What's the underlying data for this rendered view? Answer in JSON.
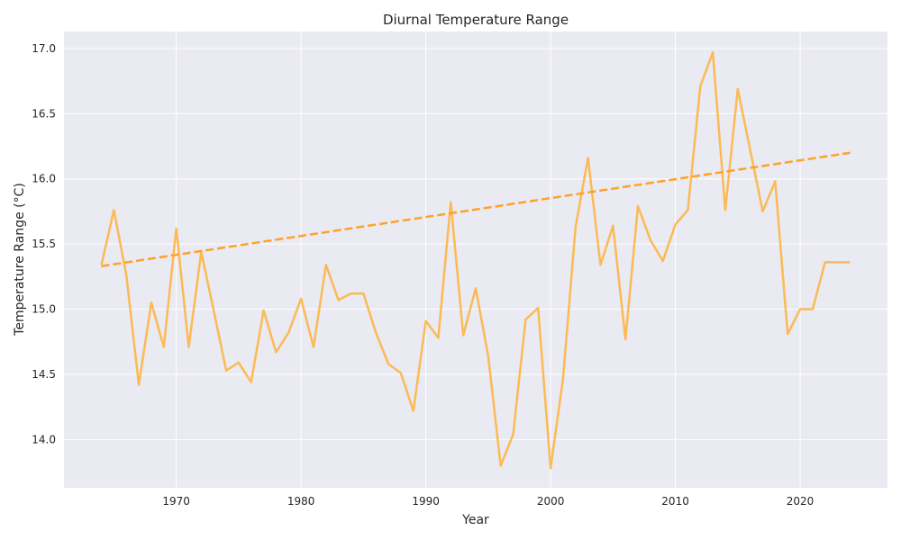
{
  "chart_data": {
    "type": "line",
    "title": "Diurnal Temperature Range",
    "xlabel": "Year",
    "ylabel": "Temperature Range (°C)",
    "xlim": [
      1961,
      2027
    ],
    "ylim": [
      13.63,
      17.13
    ],
    "xticks": [
      1970,
      1980,
      1990,
      2000,
      2010,
      2020
    ],
    "yticks": [
      14.0,
      14.5,
      15.0,
      15.5,
      16.0,
      16.5,
      17.0
    ],
    "grid": true,
    "colors": {
      "series": "#FFB13A",
      "trend": "#FF9E1F",
      "background": "#EAEAF2",
      "grid": "#FFFFFF"
    },
    "series": [
      {
        "style": "solid",
        "x": [
          1964,
          1965,
          1966,
          1967,
          1968,
          1969,
          1970,
          1971,
          1972,
          1973,
          1974,
          1975,
          1976,
          1977,
          1978,
          1979,
          1980,
          1981,
          1982,
          1983,
          1984,
          1985,
          1986,
          1987,
          1988,
          1989,
          1990,
          1991,
          1992,
          1993,
          1994,
          1995,
          1996,
          1997,
          1998,
          1999,
          2000,
          2001,
          2002,
          2003,
          2004,
          2005,
          2006,
          2007,
          2008,
          2009,
          2010,
          2011,
          2012,
          2013,
          2014,
          2015,
          2016,
          2017,
          2018,
          2019,
          2020,
          2021,
          2022,
          2023,
          2024
        ],
        "y": [
          15.34,
          15.76,
          15.26,
          14.42,
          15.05,
          14.71,
          15.62,
          14.71,
          15.44,
          14.99,
          14.53,
          14.59,
          14.44,
          14.99,
          14.67,
          14.82,
          15.08,
          14.71,
          15.34,
          15.07,
          15.12,
          15.12,
          14.82,
          14.58,
          14.51,
          14.22,
          14.91,
          14.78,
          15.82,
          14.8,
          15.16,
          14.64,
          13.8,
          14.04,
          14.92,
          15.01,
          13.78,
          14.47,
          15.63,
          16.16,
          15.34,
          15.64,
          14.77,
          15.79,
          15.53,
          15.37,
          15.65,
          15.76,
          16.71,
          16.97,
          15.76,
          16.69,
          16.22,
          15.75,
          15.98,
          14.81,
          15.0,
          15.0,
          15.36,
          15.36,
          15.36
        ]
      },
      {
        "style": "dashed",
        "x": [
          1964,
          2024
        ],
        "y": [
          15.33,
          16.2
        ]
      }
    ]
  }
}
